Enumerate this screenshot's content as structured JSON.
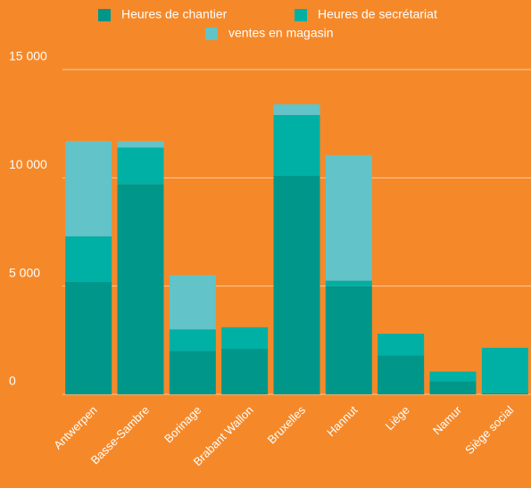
{
  "chart_data": {
    "type": "stacked_bar",
    "categories": [
      "Antwerpen",
      "Basse-Sambre",
      "Borinage",
      "Brabant Wallon",
      "Bruxelles",
      "Hannut",
      "Liège",
      "Namur",
      "Siège social"
    ],
    "series": [
      {
        "name": "Heures de chantier",
        "color": "#00968a",
        "values": [
          5200,
          9700,
          2000,
          2100,
          10100,
          5000,
          1800,
          600,
          50
        ]
      },
      {
        "name": "Heures de secrétariat",
        "color": "#00b0a5",
        "values": [
          2100,
          1700,
          1000,
          1000,
          2800,
          250,
          1000,
          450,
          2100
        ]
      },
      {
        "name": "ventes en magasin",
        "color": "#62c3c8",
        "values": [
          4400,
          300,
          2500,
          0,
          500,
          5800,
          0,
          0,
          0
        ]
      }
    ],
    "ylim": [
      0,
      15000
    ],
    "yticks": [
      0,
      {
        "value": 5000,
        "label": "5 000"
      },
      {
        "value": 10000,
        "label": "10 000"
      },
      {
        "value": 15000,
        "label": "15 000"
      }
    ],
    "grid": true
  }
}
